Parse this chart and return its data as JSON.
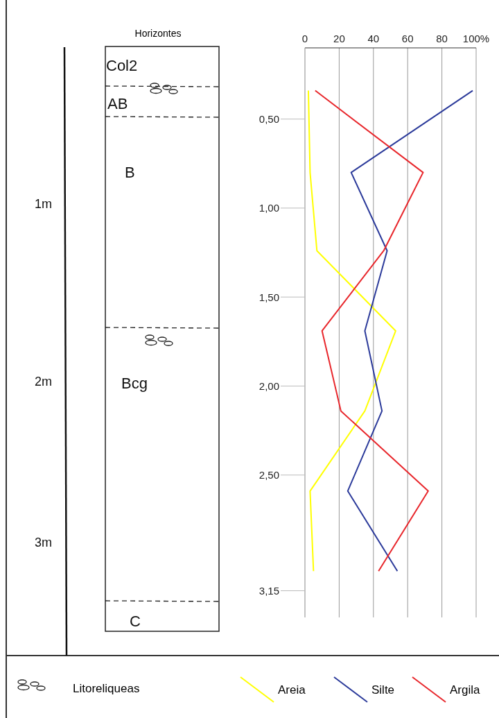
{
  "chart_data": {
    "type": "line",
    "title": "Horizontes",
    "orientation": "horizontal",
    "x": [
      0.34,
      0.8,
      1.24,
      1.69,
      2.14,
      2.59,
      3.04
    ],
    "series": [
      {
        "name": "Areia",
        "color": "#ffff00",
        "values": [
          2,
          3,
          7,
          53,
          35,
          3,
          5
        ]
      },
      {
        "name": "Silte",
        "color": "#2b3a9a",
        "values": [
          98,
          27,
          48,
          35,
          45,
          25,
          54
        ]
      },
      {
        "name": "Argila",
        "color": "#e8262b",
        "values": [
          6,
          69,
          46,
          10,
          21,
          72,
          43
        ]
      }
    ],
    "xlim": [
      0,
      100
    ],
    "xticks": [
      0,
      20,
      40,
      60,
      80,
      {
        "value": 100,
        "label": "100%"
      }
    ],
    "ylim": [
      3.3,
      0.1
    ],
    "yticks": [
      {
        "value": 0.5,
        "label": "0,50"
      },
      {
        "value": 1,
        "label": "1,00"
      },
      {
        "value": 1.5,
        "label": "1,50"
      },
      {
        "value": 2,
        "label": "2,00"
      },
      {
        "value": 2.5,
        "label": "2,50"
      },
      {
        "value": 3.15,
        "label": "3,15"
      }
    ],
    "grid": "x",
    "legend": "bottom",
    "marker": "none",
    "line_style": "solid",
    "annotations": [
      "Col2",
      "AB",
      "B",
      "Bcg",
      "C",
      "1m",
      "2m",
      "3m",
      "Litoreliqueas"
    ]
  }
}
